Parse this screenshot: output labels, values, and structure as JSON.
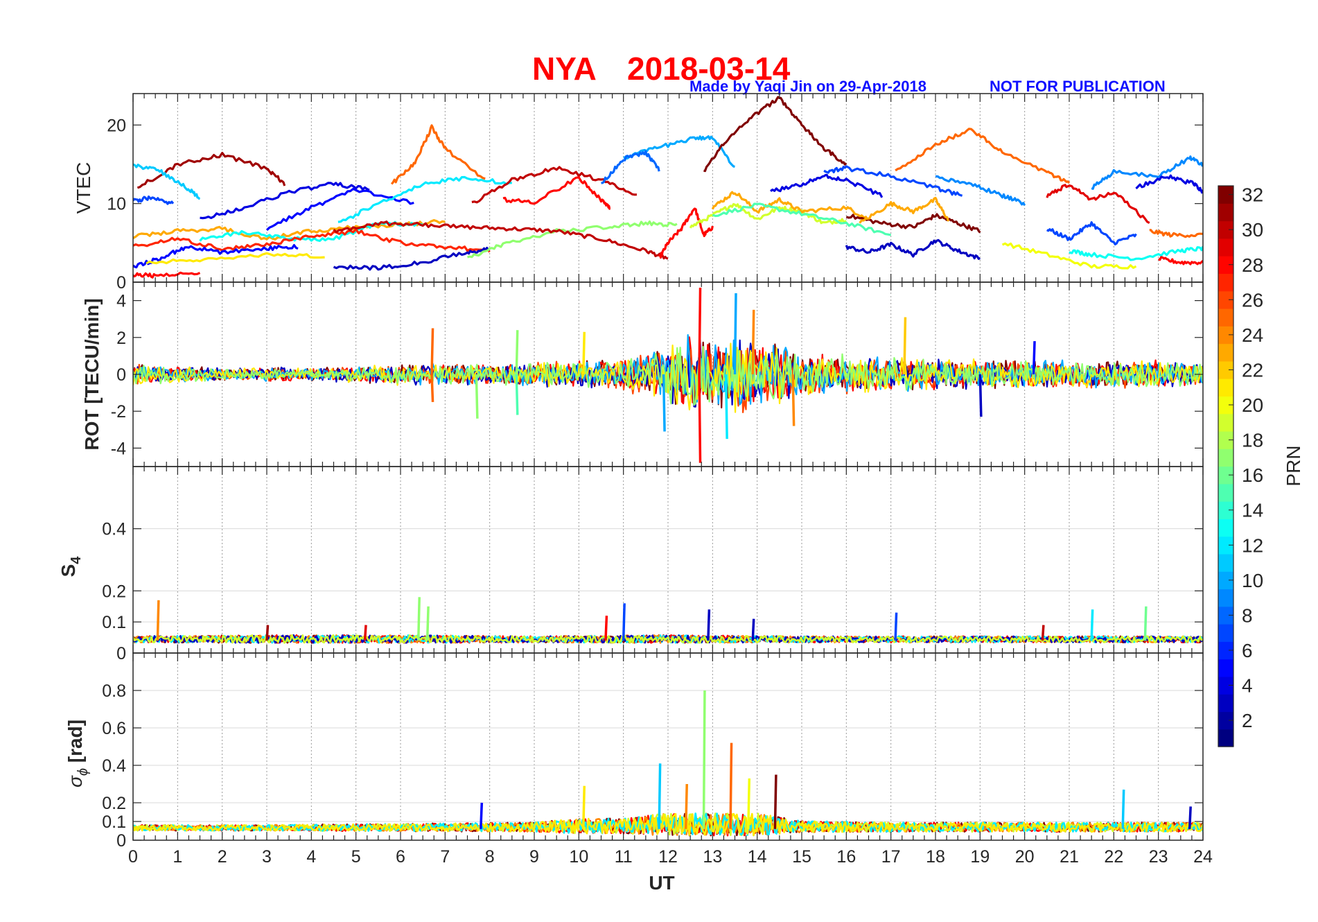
{
  "figure": {
    "title_station": "NYA",
    "title_date": "2018-03-14",
    "credit": "Made by Yaqi Jin on 29-Apr-2018",
    "notice": "NOT FOR PUBLICATION"
  },
  "chart_data": [
    {
      "type": "line",
      "panel": "vtec",
      "ylabel": "VTEC",
      "xlim": [
        0,
        24
      ],
      "ylim": [
        0,
        24
      ],
      "yticks": [
        0,
        10,
        20
      ],
      "ytick_labels": [
        "0",
        "10",
        "20"
      ],
      "grid": "vertical",
      "series": [
        {
          "prn": 31,
          "x": [
            0.1,
            1,
            2,
            3,
            3.4
          ],
          "y": [
            12,
            15,
            16.2,
            14.5,
            12.5
          ]
        },
        {
          "prn": 11,
          "x": [
            0,
            0.6,
            1.2,
            1.5
          ],
          "y": [
            14.8,
            14.2,
            12,
            10.8
          ]
        },
        {
          "prn": 7,
          "x": [
            0,
            0.4,
            0.9
          ],
          "y": [
            10.3,
            10.8,
            10
          ]
        },
        {
          "prn": 4,
          "x": [
            1.5,
            2.5,
            3.5,
            4.5,
            5.3
          ],
          "y": [
            8,
            9.5,
            11.5,
            12.5,
            11.8
          ]
        },
        {
          "prn": 5,
          "x": [
            3,
            4,
            5,
            6.3
          ],
          "y": [
            6.8,
            9.5,
            11.8,
            10
          ]
        },
        {
          "prn": 12,
          "x": [
            4.6,
            5.5,
            6.5,
            7.5,
            8.5
          ],
          "y": [
            7.5,
            10,
            12.5,
            13.3,
            12.5
          ]
        },
        {
          "prn": 25,
          "x": [
            5.8,
            6.3,
            6.7,
            7,
            7.9
          ],
          "y": [
            12.5,
            15,
            19.7,
            17,
            13
          ]
        },
        {
          "prn": 30,
          "x": [
            7.6,
            8.5,
            9.5,
            10.5,
            11.3
          ],
          "y": [
            10,
            13,
            14.5,
            13,
            11
          ]
        },
        {
          "prn": 28,
          "x": [
            8.3,
            9,
            10,
            10.5,
            10.7
          ],
          "y": [
            10.5,
            10.2,
            13.3,
            10.5,
            9.5
          ]
        },
        {
          "prn": 10,
          "x": [
            11,
            11.7,
            12.5,
            13,
            13.5
          ],
          "y": [
            15.8,
            17,
            18.2,
            18.5,
            14.5
          ]
        },
        {
          "prn": 8,
          "x": [
            10.5,
            11,
            11.5,
            11.8
          ],
          "y": [
            12.5,
            15.7,
            16.5,
            14.3
          ]
        },
        {
          "prn": 32,
          "x": [
            12.8,
            13.3,
            14,
            14.5,
            15,
            15.5,
            16
          ],
          "y": [
            14,
            18,
            21.5,
            23.5,
            20,
            17,
            15
          ]
        },
        {
          "prn": 4,
          "x": [
            14.3,
            15,
            15.5,
            16,
            16.8
          ],
          "y": [
            11.5,
            12.5,
            13.5,
            13,
            11
          ]
        },
        {
          "prn": 7,
          "x": [
            15.5,
            16,
            17,
            18,
            18.6
          ],
          "y": [
            14,
            14.5,
            13.5,
            12,
            11
          ]
        },
        {
          "prn": 25,
          "x": [
            17.1,
            18,
            18.8,
            19.5,
            20.5,
            21
          ],
          "y": [
            14,
            17.5,
            19.5,
            16.5,
            14,
            12.5
          ]
        },
        {
          "prn": 9,
          "x": [
            18,
            18.8,
            19.5,
            20
          ],
          "y": [
            13.3,
            12.5,
            11,
            10
          ]
        },
        {
          "prn": 29,
          "x": [
            20.5,
            21,
            21.5,
            22,
            22.8
          ],
          "y": [
            11,
            12.5,
            10.5,
            11.5,
            7.5
          ]
        },
        {
          "prn": 9,
          "x": [
            21.5,
            22,
            23,
            23.7,
            24
          ],
          "y": [
            12,
            14,
            13.5,
            15.8,
            15
          ]
        },
        {
          "prn": 4,
          "x": [
            22.5,
            23.2,
            23.8,
            24
          ],
          "y": [
            12,
            13.5,
            12.5,
            11.5
          ]
        },
        {
          "prn": 23,
          "x": [
            0,
            1,
            2,
            3,
            4,
            5,
            6,
            7
          ],
          "y": [
            5.8,
            6.5,
            6.8,
            5.5,
            6.5,
            7,
            7.3,
            7.8
          ]
        },
        {
          "prn": 13,
          "x": [
            1.5,
            2.5,
            3.5,
            4.5,
            5.5,
            6.5
          ],
          "y": [
            5.5,
            6.3,
            5.5,
            5.5,
            7.5,
            7.3
          ]
        },
        {
          "prn": 27,
          "x": [
            0,
            1,
            2,
            3,
            4,
            5,
            6,
            7,
            8
          ],
          "y": [
            4.5,
            5.5,
            4.2,
            4.8,
            5.8,
            6.5,
            5,
            4.5,
            4
          ]
        },
        {
          "prn": 5,
          "x": [
            0,
            0.6,
            1.2,
            2,
            3,
            3.7
          ],
          "y": [
            2,
            3,
            4.5,
            3.8,
            4.3,
            4.5
          ]
        },
        {
          "prn": 21,
          "x": [
            0.3,
            1.5,
            3,
            4.3
          ],
          "y": [
            2.5,
            2.8,
            3.5,
            3.3
          ]
        },
        {
          "prn": 28,
          "x": [
            0,
            0.5,
            1.5
          ],
          "y": [
            1,
            0.8,
            1.2
          ]
        },
        {
          "prn": 3,
          "x": [
            4.5,
            5.5,
            6.5,
            7.5,
            8
          ],
          "y": [
            2,
            1.8,
            2.5,
            3.8,
            4.2
          ]
        },
        {
          "prn": 17,
          "x": [
            7.5,
            8.3,
            9.5,
            10.7,
            11.5,
            12.2
          ],
          "y": [
            3,
            4.8,
            6.5,
            7,
            7.5,
            7.3
          ]
        },
        {
          "prn": 30,
          "x": [
            4.5,
            5.5,
            6.5,
            7.5,
            8.5,
            9.5,
            10.5,
            11.5,
            12
          ],
          "y": [
            6.5,
            7.5,
            7.3,
            7,
            6.8,
            6.5,
            5.5,
            4,
            3
          ]
        },
        {
          "prn": 28,
          "x": [
            11.8,
            12,
            12.3,
            12.6,
            12.8,
            13
          ],
          "y": [
            3,
            5,
            6.8,
            9.5,
            6,
            7
          ]
        },
        {
          "prn": 19,
          "x": [
            12.5,
            13,
            13.5,
            14,
            14.5,
            15,
            15.5,
            16
          ],
          "y": [
            7,
            8.5,
            10,
            8,
            9.5,
            9,
            7.5,
            8
          ]
        },
        {
          "prn": 23,
          "x": [
            13,
            13.5,
            14,
            14.5,
            15,
            16,
            16.5
          ],
          "y": [
            9.5,
            11.5,
            9,
            10.5,
            9,
            9.5,
            8
          ]
        },
        {
          "prn": 15,
          "x": [
            13,
            14,
            15,
            16,
            17
          ],
          "y": [
            8.5,
            9.8,
            8.7,
            7.5,
            6
          ]
        },
        {
          "prn": 32,
          "x": [
            16,
            16.8,
            17.5,
            18,
            18.5,
            19
          ],
          "y": [
            8.5,
            7.5,
            7,
            8.5,
            7.5,
            6.5
          ]
        },
        {
          "prn": 23,
          "x": [
            16.3,
            17,
            17.5,
            18,
            18.3
          ],
          "y": [
            7.5,
            10,
            9,
            10.5,
            7.8
          ]
        },
        {
          "prn": 3,
          "x": [
            16,
            16.5,
            17,
            17.5,
            18,
            18.5,
            19
          ],
          "y": [
            4.5,
            3.8,
            4.8,
            3.5,
            5.3,
            4,
            3
          ]
        },
        {
          "prn": 20,
          "x": [
            19.5,
            20.5,
            21.5,
            22.5
          ],
          "y": [
            5,
            3.5,
            2,
            2
          ]
        },
        {
          "prn": 13,
          "x": [
            21,
            21.5,
            22.5,
            23.5,
            24
          ],
          "y": [
            4,
            3.5,
            3,
            4,
            4.3
          ]
        },
        {
          "prn": 28,
          "x": [
            23,
            23.5,
            24
          ],
          "y": [
            3,
            2.5,
            2.5
          ]
        },
        {
          "prn": 7,
          "x": [
            20.5,
            21,
            21.5,
            22,
            22.5
          ],
          "y": [
            6.8,
            5.5,
            7.5,
            5,
            6
          ]
        },
        {
          "prn": 25,
          "x": [
            22.8,
            23.3,
            24
          ],
          "y": [
            6.5,
            6,
            6
          ]
        }
      ]
    },
    {
      "type": "line",
      "panel": "rot",
      "ylabel": "ROT [TECU/min]",
      "xlim": [
        0,
        24
      ],
      "ylim": [
        -5,
        5
      ],
      "yticks": [
        -4,
        -2,
        0,
        2,
        4
      ],
      "ytick_labels": [
        "-4",
        "-2",
        "0",
        "2",
        "4"
      ],
      "grid": "vertical",
      "baseline": 0,
      "envelope": {
        "x": [
          0,
          2,
          4,
          6,
          8,
          10,
          11,
          12,
          12.5,
          13,
          13.5,
          14,
          14.5,
          15,
          16,
          17,
          18,
          19,
          20,
          21,
          22,
          23,
          24
        ],
        "amp": [
          0.6,
          0.4,
          0.4,
          0.6,
          0.6,
          0.8,
          1.0,
          1.6,
          2.5,
          2.0,
          2.3,
          2.0,
          1.8,
          1.2,
          1.1,
          1.0,
          0.9,
          0.9,
          0.8,
          0.8,
          0.8,
          0.8,
          0.7
        ]
      },
      "spikes": [
        {
          "x": 6.7,
          "y": 2.5,
          "prn": 25
        },
        {
          "x": 6.7,
          "y": -1.5,
          "prn": 25
        },
        {
          "x": 7.7,
          "y": -2.4,
          "prn": 17
        },
        {
          "x": 8.6,
          "y": 2.4,
          "prn": 17
        },
        {
          "x": 8.6,
          "y": -2.2,
          "prn": 15
        },
        {
          "x": 10.1,
          "y": 2.3,
          "prn": 21
        },
        {
          "x": 11.9,
          "y": -3.1,
          "prn": 10
        },
        {
          "x": 12.7,
          "y": 4.7,
          "prn": 28
        },
        {
          "x": 12.7,
          "y": -4.8,
          "prn": 28
        },
        {
          "x": 13.5,
          "y": 4.4,
          "prn": 10
        },
        {
          "x": 13.3,
          "y": -3.5,
          "prn": 12
        },
        {
          "x": 13.9,
          "y": 3.5,
          "prn": 24
        },
        {
          "x": 14.8,
          "y": -2.8,
          "prn": 24
        },
        {
          "x": 17.3,
          "y": 3.1,
          "prn": 22
        },
        {
          "x": 19.0,
          "y": -2.3,
          "prn": 3
        },
        {
          "x": 20.2,
          "y": 1.8,
          "prn": 5
        }
      ],
      "series_colors_prn": [
        32,
        28,
        26,
        3,
        10,
        21,
        17
      ]
    },
    {
      "type": "line",
      "panel": "s4",
      "ylabel": "S",
      "ylabel_subscript": "4",
      "xlim": [
        0,
        24
      ],
      "ylim": [
        0,
        0.6
      ],
      "yticks": [
        0,
        0.1,
        0.2,
        0.4
      ],
      "ytick_labels": [
        "0",
        "0.1",
        "0.2",
        "0.4"
      ],
      "grid": "both",
      "baseline": 0.04,
      "envelope": {
        "x": [
          0,
          3,
          6,
          9,
          12,
          15,
          18,
          21,
          24
        ],
        "amp": [
          0.02,
          0.025,
          0.025,
          0.02,
          0.025,
          0.02,
          0.02,
          0.02,
          0.02
        ]
      },
      "spikes": [
        {
          "x": 0.55,
          "y": 0.17,
          "prn": 24
        },
        {
          "x": 3.0,
          "y": 0.09,
          "prn": 31
        },
        {
          "x": 5.2,
          "y": 0.09,
          "prn": 29
        },
        {
          "x": 6.4,
          "y": 0.18,
          "prn": 17
        },
        {
          "x": 6.6,
          "y": 0.15,
          "prn": 17
        },
        {
          "x": 10.6,
          "y": 0.12,
          "prn": 28
        },
        {
          "x": 11.0,
          "y": 0.16,
          "prn": 7
        },
        {
          "x": 12.9,
          "y": 0.14,
          "prn": 3
        },
        {
          "x": 13.9,
          "y": 0.11,
          "prn": 3
        },
        {
          "x": 17.1,
          "y": 0.13,
          "prn": 7
        },
        {
          "x": 20.4,
          "y": 0.09,
          "prn": 30
        },
        {
          "x": 21.5,
          "y": 0.14,
          "prn": 12
        },
        {
          "x": 22.7,
          "y": 0.15,
          "prn": 16
        }
      ],
      "series_colors_prn": [
        32,
        28,
        24,
        12,
        3,
        19
      ]
    },
    {
      "type": "line",
      "panel": "sigma_phi",
      "ylabel": "σ",
      "ylabel_subscript": "ϕ",
      "ylabel_unit": "[rad]",
      "xlim": [
        0,
        24
      ],
      "ylim": [
        0,
        1
      ],
      "yticks": [
        0,
        0.1,
        0.2,
        0.4,
        0.6,
        0.8
      ],
      "ytick_labels": [
        "0",
        "0.1",
        "0.2",
        "0.4",
        "0.6",
        "0.8"
      ],
      "grid": "both",
      "xlabel": "UT",
      "xticks": [
        0,
        1,
        2,
        3,
        4,
        5,
        6,
        7,
        8,
        9,
        10,
        11,
        12,
        13,
        14,
        15,
        16,
        17,
        18,
        19,
        20,
        21,
        22,
        23,
        24
      ],
      "xtick_labels": [
        "0",
        "1",
        "2",
        "3",
        "4",
        "5",
        "6",
        "7",
        "8",
        "9",
        "10",
        "11",
        "12",
        "13",
        "14",
        "15",
        "16",
        "17",
        "18",
        "19",
        "20",
        "21",
        "22",
        "23",
        "24"
      ],
      "baseline": 0.06,
      "envelope": {
        "x": [
          0,
          3,
          6,
          9,
          10,
          11,
          12,
          13,
          14,
          15,
          17,
          20,
          24
        ],
        "amp": [
          0.03,
          0.03,
          0.04,
          0.05,
          0.08,
          0.08,
          0.12,
          0.12,
          0.12,
          0.06,
          0.05,
          0.05,
          0.05
        ]
      },
      "spikes": [
        {
          "x": 7.8,
          "y": 0.2,
          "prn": 5
        },
        {
          "x": 10.1,
          "y": 0.29,
          "prn": 21
        },
        {
          "x": 11.8,
          "y": 0.41,
          "prn": 11
        },
        {
          "x": 12.4,
          "y": 0.3,
          "prn": 24
        },
        {
          "x": 12.8,
          "y": 0.8,
          "prn": 17
        },
        {
          "x": 13.4,
          "y": 0.52,
          "prn": 25
        },
        {
          "x": 13.8,
          "y": 0.33,
          "prn": 20
        },
        {
          "x": 14.4,
          "y": 0.35,
          "prn": 32
        },
        {
          "x": 22.2,
          "y": 0.27,
          "prn": 11
        },
        {
          "x": 23.7,
          "y": 0.18,
          "prn": 3
        }
      ],
      "series_colors_prn": [
        32,
        28,
        24,
        19,
        12,
        21
      ]
    }
  ],
  "colorbar": {
    "label": "PRN",
    "colormap": "jet",
    "range": [
      1,
      32
    ],
    "ticks": [
      2,
      4,
      6,
      8,
      10,
      12,
      14,
      16,
      18,
      20,
      22,
      24,
      26,
      28,
      30,
      32
    ],
    "tick_labels": [
      "2",
      "4",
      "6",
      "8",
      "10",
      "12",
      "14",
      "16",
      "18",
      "20",
      "22",
      "24",
      "26",
      "28",
      "30",
      "32"
    ]
  }
}
